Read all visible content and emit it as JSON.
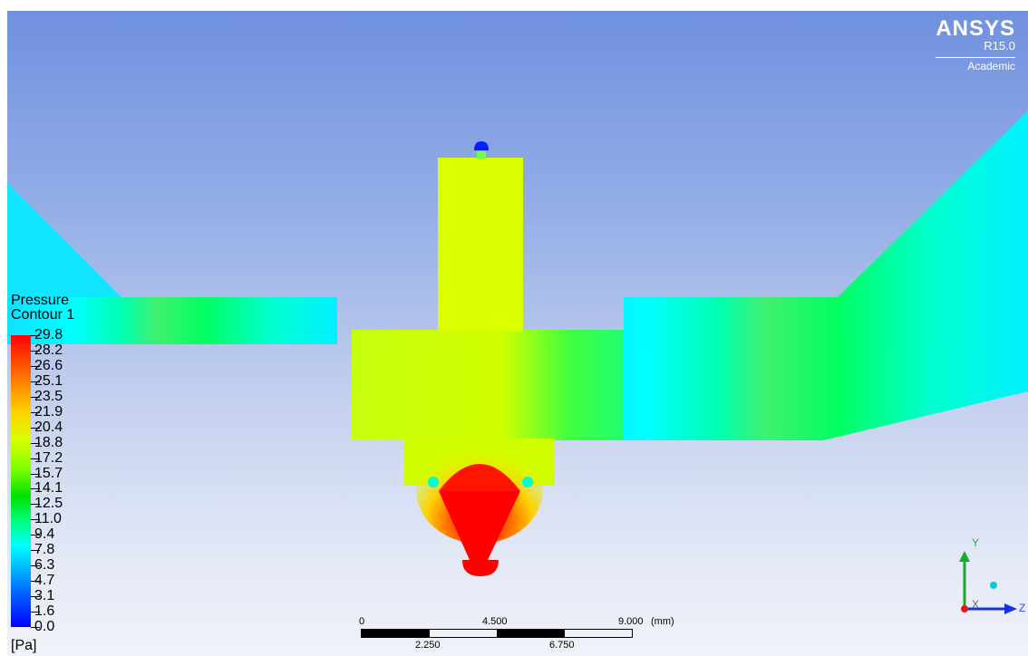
{
  "logo": {
    "brand": "ANSYS",
    "version": "R15.0",
    "edition": "Academic"
  },
  "legend": {
    "title_line1": "Pressure",
    "title_line2": "Contour 1",
    "unit": "[Pa]",
    "labels": [
      "29.8",
      "28.2",
      "26.6",
      "25.1",
      "23.5",
      "21.9",
      "20.4",
      "18.8",
      "17.2",
      "15.7",
      "14.1",
      "12.5",
      "11.0",
      "9.4",
      "7.8",
      "6.3",
      "4.7",
      "3.1",
      "1.6",
      "0.0"
    ]
  },
  "scale_bar": {
    "top_labels": [
      "0",
      "4.500",
      "9.000"
    ],
    "bottom_labels": [
      "2.250",
      "6.750"
    ],
    "unit": "(mm)"
  },
  "axes": {
    "x": "X",
    "y": "Y",
    "z": "Z"
  }
}
